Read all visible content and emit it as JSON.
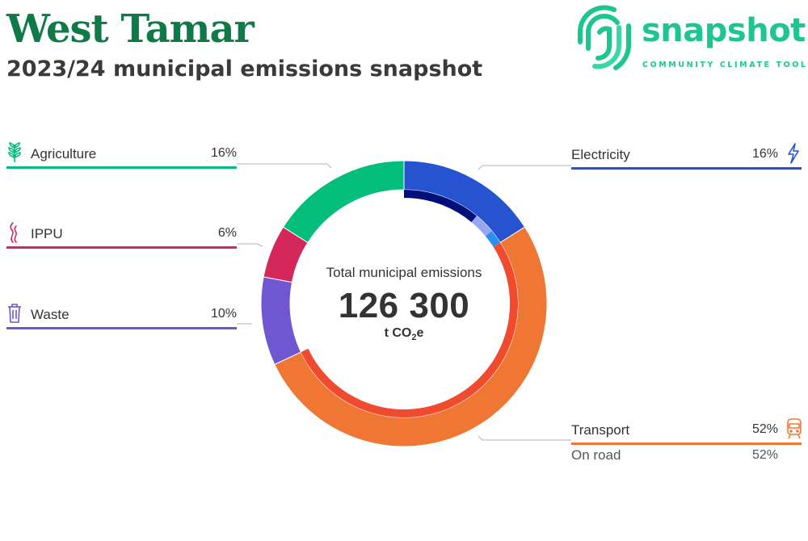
{
  "header": {
    "title": "West Tamar",
    "subtitle": "2023/24 municipal emissions snapshot"
  },
  "logo": {
    "word": "snapshot",
    "tagline": "COMMUNITY CLIMATE TOOL"
  },
  "center": {
    "label": "Total municipal emissions",
    "value": "126 300",
    "unit_prefix": "t CO",
    "unit_sub": "2",
    "unit_suffix": "e"
  },
  "chart_data": {
    "type": "pie",
    "title": "2023/24 municipal emissions snapshot",
    "total": 126300,
    "unit": "t CO2e",
    "series": [
      {
        "name": "Electricity",
        "value": 16,
        "label": "16%",
        "color": "#2653cf",
        "icon": "lightning-icon",
        "sub": [
          {
            "value": 11,
            "color": "#000f7a"
          },
          {
            "value": 3,
            "color": "#94a7ef"
          },
          {
            "value": 2,
            "color": "#2f8ef4"
          }
        ]
      },
      {
        "name": "Transport",
        "value": 52,
        "label": "52%",
        "color": "#f07633",
        "icon": "train-icon",
        "sub": [
          {
            "name": "On road",
            "value": 52,
            "label": "52%",
            "color": "#f04b2f"
          }
        ]
      },
      {
        "name": "Waste",
        "value": 10,
        "label": "10%",
        "color": "#6e57d0",
        "icon": "bin-icon"
      },
      {
        "name": "IPPU",
        "value": 6,
        "label": "6%",
        "color": "#d4285a",
        "icon": "smoke-icon"
      },
      {
        "name": "Agriculture",
        "value": 16,
        "label": "16%",
        "color": "#03bd7c",
        "icon": "plant-icon"
      }
    ]
  }
}
